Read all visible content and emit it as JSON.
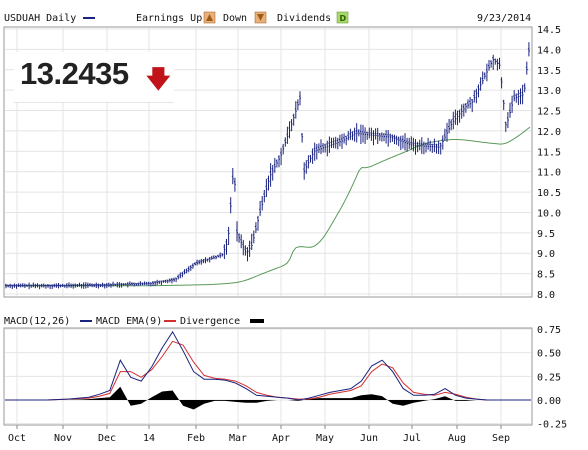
{
  "header": {
    "symbol_label": "USDUAH Daily",
    "earnings_up_label": "Earnings Up",
    "earnings_down_label": "Down",
    "dividends_label": "Dividends",
    "date_label": "9/23/2014",
    "series_color": "#1a237e"
  },
  "price_display": {
    "value": "13.2435",
    "direction": "down",
    "arrow_color": "#c0141a"
  },
  "chart_data": [
    {
      "type": "ohlc",
      "series": [
        {
          "values_monthly_approx": [
            {
              "month": "Oct",
              "close": 8.2
            },
            {
              "month": "Nov",
              "close": 8.2
            },
            {
              "month": "Dec",
              "close": 8.22
            },
            {
              "month": "14",
              "close": 8.25
            },
            {
              "month": "Feb",
              "close": 8.8
            },
            {
              "month": "Mar",
              "close": 9.6
            },
            {
              "month": "Apr",
              "close": 11.2
            },
            {
              "month": "May",
              "close": 11.7
            },
            {
              "month": "Jun",
              "close": 11.9
            },
            {
              "month": "Jul",
              "close": 11.65
            },
            {
              "month": "Aug",
              "close": 12.6
            },
            {
              "month": "Sep",
              "close": 13.24
            }
          ]
        }
      ],
      "xticks": [
        "Oct",
        "Nov",
        "Dec",
        "14",
        "Feb",
        "Mar",
        "Apr",
        "May",
        "Jun",
        "Jul",
        "Aug",
        "Sep"
      ],
      "yticks": [
        "8.0",
        "8.5",
        "9.0",
        "9.5",
        "10.0",
        "10.5",
        "11.0",
        "11.5",
        "12.0",
        "12.5",
        "13.0",
        "13.5",
        "14.0",
        "14.5"
      ],
      "ylim": [
        8.0,
        14.5
      ],
      "grid": true
    },
    {
      "type": "line",
      "legend": [
        "MACD(12,26)",
        "MACD EMA(9)",
        "Divergence"
      ],
      "legend_colors": [
        "#1a237e",
        "#d32f2f",
        "#000000"
      ],
      "series": [
        {
          "name": "MACD(12,26)",
          "color": "#1a237e"
        },
        {
          "name": "MACD EMA(9)",
          "color": "#d32f2f"
        },
        {
          "name": "Divergence",
          "color": "#000000"
        }
      ],
      "x": [
        0,
        10,
        20,
        30,
        40,
        45,
        50,
        55,
        60,
        65,
        70,
        75,
        80,
        85,
        90,
        95,
        100,
        105,
        110,
        115,
        120,
        125,
        130,
        135,
        140,
        145,
        150,
        155,
        160,
        165,
        170,
        175,
        180,
        185,
        190,
        195,
        200,
        205,
        210,
        215,
        220,
        225,
        230,
        235,
        240,
        245,
        250,
        251
      ],
      "macd": [
        0.0,
        0.0,
        0.0,
        0.01,
        0.03,
        0.06,
        0.1,
        0.42,
        0.24,
        0.2,
        0.35,
        0.55,
        0.72,
        0.52,
        0.3,
        0.22,
        0.22,
        0.21,
        0.18,
        0.12,
        0.05,
        0.04,
        0.03,
        0.02,
        0.0,
        0.02,
        0.05,
        0.08,
        0.1,
        0.12,
        0.2,
        0.36,
        0.42,
        0.3,
        0.12,
        0.05,
        0.05,
        0.06,
        0.12,
        0.05,
        0.02,
        0.01,
        0.0,
        0.0,
        0.0,
        0.0,
        0.0,
        0.0
      ],
      "ema": [
        0.0,
        0.0,
        0.0,
        0.01,
        0.02,
        0.04,
        0.07,
        0.3,
        0.3,
        0.24,
        0.32,
        0.46,
        0.62,
        0.58,
        0.4,
        0.26,
        0.23,
        0.22,
        0.2,
        0.15,
        0.08,
        0.05,
        0.03,
        0.02,
        0.01,
        0.01,
        0.03,
        0.06,
        0.08,
        0.1,
        0.15,
        0.3,
        0.38,
        0.34,
        0.18,
        0.08,
        0.06,
        0.05,
        0.08,
        0.06,
        0.03,
        0.01,
        0.0,
        0.0,
        0.0,
        0.0,
        0.0,
        0.0
      ],
      "divergence": [
        0.0,
        0.0,
        0.0,
        0.0,
        0.01,
        0.02,
        0.03,
        0.14,
        -0.06,
        -0.04,
        0.03,
        0.09,
        0.1,
        -0.06,
        -0.1,
        -0.04,
        -0.01,
        -0.01,
        -0.02,
        -0.03,
        -0.03,
        -0.01,
        0.0,
        0.0,
        -0.01,
        0.01,
        0.02,
        0.02,
        0.02,
        0.02,
        0.05,
        0.06,
        0.04,
        -0.04,
        -0.06,
        -0.03,
        -0.01,
        0.01,
        0.04,
        -0.01,
        -0.01,
        0.0,
        0.0,
        0.0,
        0.0,
        0.0,
        0.0,
        0.0
      ],
      "xticks": [
        "Oct",
        "Nov",
        "Dec",
        "14",
        "Feb",
        "Mar",
        "Apr",
        "May",
        "Jun",
        "Jul",
        "Aug",
        "Sep"
      ],
      "yticks": [
        "0.75",
        "0.50",
        "0.25",
        "0.00",
        "-0.25"
      ],
      "ylim": [
        -0.3,
        0.8
      ],
      "grid": true
    }
  ]
}
